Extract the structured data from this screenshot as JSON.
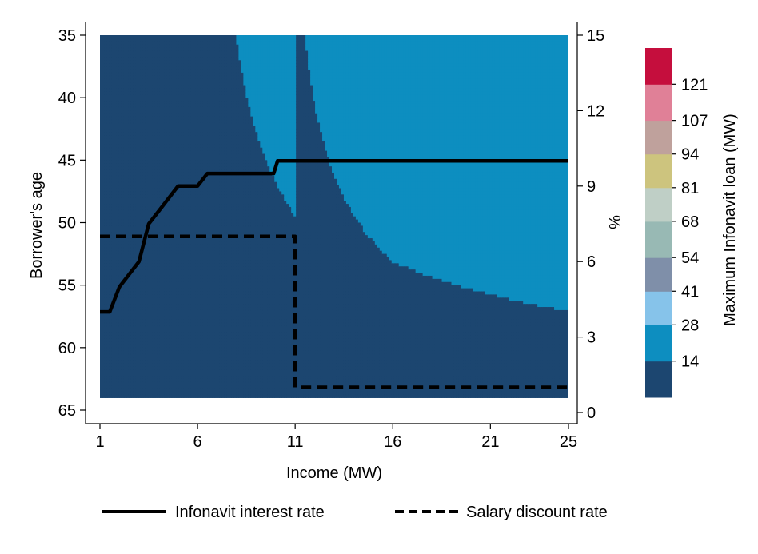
{
  "chart_data": {
    "type": "heatmap",
    "title": "",
    "xlabel": "Income (MW)",
    "ylabel_left": "Borrower's age",
    "ylabel_right": "%",
    "colorbar_label": "Maximum Infonavit loan (MW)",
    "x_ticks": [
      1,
      6,
      11,
      16,
      21,
      25
    ],
    "xlim": [
      1,
      25
    ],
    "y_left_ticks": [
      35,
      40,
      45,
      50,
      55,
      60,
      65
    ],
    "y_left_range": [
      35,
      65
    ],
    "y_left_inverted": true,
    "y_right_ticks": [
      0,
      3,
      6,
      9,
      12,
      15
    ],
    "y_right_range": [
      0,
      15
    ],
    "grid": false,
    "colorbar": {
      "ticks": [
        14,
        28,
        41,
        54,
        68,
        81,
        94,
        107,
        121
      ],
      "bins": [
        {
          "lower": 0,
          "upper": 14,
          "color": "#1c4670"
        },
        {
          "lower": 14,
          "upper": 28,
          "color": "#0d8ec0"
        },
        {
          "lower": 28,
          "upper": 41,
          "color": "#86c3ea"
        },
        {
          "lower": 41,
          "upper": 54,
          "color": "#7f8fa9"
        },
        {
          "lower": 54,
          "upper": 68,
          "color": "#98b9b4"
        },
        {
          "lower": 68,
          "upper": 81,
          "color": "#bfcfc6"
        },
        {
          "lower": 81,
          "upper": 94,
          "color": "#cdc47e"
        },
        {
          "lower": 94,
          "upper": 107,
          "color": "#bfa19c"
        },
        {
          "lower": 107,
          "upper": 121,
          "color": "#e08097"
        },
        {
          "lower": 121,
          "upper": 135,
          "color": "#c50e3d"
        }
      ]
    },
    "heatmap_extent": {
      "income": [
        1,
        25
      ],
      "age": [
        35,
        64
      ]
    },
    "series": [
      {
        "name": "Infonavit interest rate",
        "style": "solid",
        "axis": "right",
        "color": "#000000",
        "x": [
          1,
          1.5,
          2,
          3,
          3.5,
          4,
          4.5,
          5,
          5.5,
          6,
          6.5,
          7,
          8,
          9,
          9.9,
          10.1,
          11,
          16,
          21,
          25
        ],
        "y": [
          4,
          4,
          5,
          6,
          7.5,
          8,
          8.5,
          9,
          9,
          9,
          9.5,
          9.5,
          9.5,
          9.5,
          9.5,
          10,
          10,
          10,
          10,
          10
        ]
      },
      {
        "name": "Salary discount rate",
        "style": "dashed",
        "axis": "right",
        "color": "#000000",
        "x": [
          1,
          11,
          11,
          25
        ],
        "y": [
          7,
          7,
          1,
          1
        ]
      }
    ],
    "legend_placement": "bottom"
  }
}
